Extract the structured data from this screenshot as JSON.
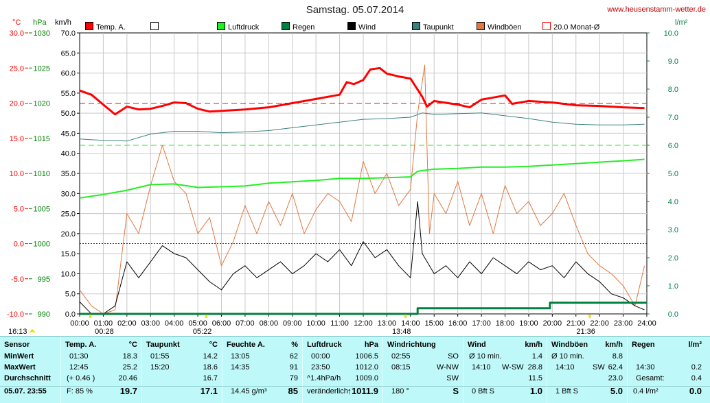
{
  "title": "Samstag. 05.07.2014",
  "site": "www.heusenstamm-wetter.de",
  "units": {
    "temp": "°C",
    "hpa": "hPa",
    "kmh": "km/h",
    "rain": "l/m²"
  },
  "legend": [
    {
      "label": "Temp. A.",
      "color": "#ff0000",
      "style": "filled"
    },
    {
      "label": "",
      "color": "#ffffff",
      "style": "open"
    },
    {
      "label": "Luftdruck",
      "color": "#22ee22",
      "style": "filled"
    },
    {
      "label": "Regen",
      "color": "#008040",
      "style": "filled"
    },
    {
      "label": "Wind",
      "color": "#000000",
      "style": "filled"
    },
    {
      "label": "Taupunkt",
      "color": "#3a8080",
      "style": "filled"
    },
    {
      "label": "Windböen",
      "color": "#e07840",
      "style": "filled"
    },
    {
      "label": "20.0 Monat-Ø",
      "color": "#ff0000",
      "style": "open"
    }
  ],
  "chart_data": {
    "type": "line",
    "title": "Samstag. 05.07.2014",
    "x_unit": "hours",
    "xlim": [
      0,
      24
    ],
    "xticks": [
      "00:00",
      "01:00",
      "02:00",
      "03:00",
      "04:00",
      "05:00",
      "06:00",
      "07:00",
      "08:00",
      "09:00",
      "10:00",
      "11:00",
      "12:00",
      "13:00",
      "14:00",
      "15:00",
      "16:00",
      "17:00",
      "18:00",
      "19:00",
      "20:00",
      "21:00",
      "22:00",
      "23:00",
      "24:00"
    ],
    "y_axes": {
      "kmh": {
        "range": [
          0,
          70
        ],
        "ticks": [
          "0.0",
          "5.0",
          "10.0",
          "15.0",
          "20.0",
          "25.0",
          "30.0",
          "35.0",
          "40.0",
          "45.0",
          "50.0",
          "55.0",
          "60.0",
          "65.0",
          "70.0"
        ]
      },
      "temp": {
        "range": [
          -10,
          30
        ],
        "ticks": [
          "-10.0",
          "-5.0",
          "0.0",
          "5.0",
          "10.0",
          "15.0",
          "20.0",
          "25.0",
          "30.0"
        ]
      },
      "hpa": {
        "range": [
          990,
          1030
        ],
        "ticks": [
          "990",
          "995",
          "1000",
          "1005",
          "1010",
          "1015",
          "1020",
          "1025",
          "1030"
        ]
      },
      "rain": {
        "range": [
          0,
          10
        ],
        "ticks": [
          "0.0",
          "1.0",
          "2.0",
          "3.0",
          "4.0",
          "5.0",
          "6.0",
          "7.0",
          "8.0",
          "9.0",
          "10.0"
        ]
      }
    },
    "reference_lines": [
      {
        "name": "20.0 Monat-Ø",
        "axis": "temp",
        "value": 20.0,
        "color": "#ff0000"
      },
      {
        "axis": "temp",
        "value": 0.0,
        "color": "#0000c0"
      },
      {
        "axis": "rain",
        "value": 6.0,
        "color": "#22ee22"
      }
    ],
    "series": [
      {
        "name": "Temp. A.",
        "axis": "temp",
        "color": "#ff0000",
        "width": 3,
        "points": [
          [
            0,
            21.8
          ],
          [
            0.5,
            21.2
          ],
          [
            1,
            19.8
          ],
          [
            1.5,
            18.4
          ],
          [
            2,
            19.5
          ],
          [
            2.5,
            19.1
          ],
          [
            3,
            19.2
          ],
          [
            3.5,
            19.6
          ],
          [
            4,
            20.1
          ],
          [
            4.5,
            20.0
          ],
          [
            5,
            19.2
          ],
          [
            5.5,
            18.8
          ],
          [
            6,
            18.9
          ],
          [
            7,
            19.1
          ],
          [
            8,
            19.4
          ],
          [
            9,
            20.0
          ],
          [
            10,
            20.6
          ],
          [
            11,
            21.2
          ],
          [
            11.3,
            23.0
          ],
          [
            11.6,
            22.7
          ],
          [
            12,
            23.3
          ],
          [
            12.3,
            24.8
          ],
          [
            12.7,
            25.0
          ],
          [
            13,
            24.2
          ],
          [
            13.5,
            23.8
          ],
          [
            14,
            23.5
          ],
          [
            14.5,
            20.9
          ],
          [
            14.7,
            19.5
          ],
          [
            15,
            20.3
          ],
          [
            16,
            19.8
          ],
          [
            16.5,
            19.4
          ],
          [
            17,
            20.5
          ],
          [
            17.5,
            20.8
          ],
          [
            18,
            21.1
          ],
          [
            18.3,
            19.9
          ],
          [
            19,
            20.3
          ],
          [
            20,
            20.1
          ],
          [
            21,
            19.7
          ],
          [
            22,
            19.6
          ],
          [
            23,
            19.4
          ],
          [
            23.9,
            19.3
          ]
        ]
      },
      {
        "name": "Luftdruck",
        "axis": "hpa",
        "color": "#22ee22",
        "width": 2,
        "points": [
          [
            0,
            1006.5
          ],
          [
            1,
            1007.0
          ],
          [
            2,
            1007.6
          ],
          [
            3,
            1008.4
          ],
          [
            4,
            1008.5
          ],
          [
            5,
            1008.0
          ],
          [
            6,
            1008.1
          ],
          [
            7,
            1008.2
          ],
          [
            8,
            1008.6
          ],
          [
            9,
            1008.8
          ],
          [
            10,
            1009.0
          ],
          [
            11,
            1009.3
          ],
          [
            12,
            1009.3
          ],
          [
            13,
            1009.4
          ],
          [
            14,
            1009.5
          ],
          [
            14.3,
            1010.3
          ],
          [
            15,
            1010.6
          ],
          [
            16,
            1010.7
          ],
          [
            17,
            1010.9
          ],
          [
            18,
            1010.9
          ],
          [
            19,
            1011.0
          ],
          [
            20,
            1011.2
          ],
          [
            21,
            1011.4
          ],
          [
            22,
            1011.6
          ],
          [
            23,
            1011.8
          ],
          [
            23.9,
            1012.0
          ]
        ]
      },
      {
        "name": "Taupunkt",
        "axis": "temp",
        "color": "#3a8080",
        "width": 1,
        "points": [
          [
            0,
            14.9
          ],
          [
            1,
            14.7
          ],
          [
            2,
            14.6
          ],
          [
            3,
            15.6
          ],
          [
            4,
            16.0
          ],
          [
            5,
            16.0
          ],
          [
            6,
            15.8
          ],
          [
            7,
            15.9
          ],
          [
            8,
            16.1
          ],
          [
            9,
            16.5
          ],
          [
            10,
            16.9
          ],
          [
            11,
            17.3
          ],
          [
            12,
            17.7
          ],
          [
            13,
            17.8
          ],
          [
            14,
            18.0
          ],
          [
            14.5,
            18.6
          ],
          [
            15,
            18.4
          ],
          [
            16,
            18.5
          ],
          [
            17,
            18.6
          ],
          [
            18,
            18.2
          ],
          [
            19,
            17.8
          ],
          [
            20,
            17.3
          ],
          [
            21,
            17.0
          ],
          [
            22,
            16.9
          ],
          [
            23,
            16.9
          ],
          [
            23.9,
            17.0
          ]
        ]
      },
      {
        "name": "Wind",
        "axis": "kmh",
        "color": "#000000",
        "width": 1,
        "points": [
          [
            0,
            3
          ],
          [
            0.5,
            0
          ],
          [
            1,
            0
          ],
          [
            1.5,
            2
          ],
          [
            2,
            13
          ],
          [
            2.5,
            9
          ],
          [
            3,
            13
          ],
          [
            3.5,
            17
          ],
          [
            4,
            15
          ],
          [
            4.5,
            14
          ],
          [
            5,
            11
          ],
          [
            5.5,
            8
          ],
          [
            6,
            6
          ],
          [
            6.5,
            10
          ],
          [
            7,
            12
          ],
          [
            7.5,
            9
          ],
          [
            8,
            11
          ],
          [
            8.5,
            13
          ],
          [
            9,
            10
          ],
          [
            9.5,
            12
          ],
          [
            10,
            15
          ],
          [
            10.5,
            13
          ],
          [
            11,
            16
          ],
          [
            11.5,
            12
          ],
          [
            12,
            18
          ],
          [
            12.5,
            14
          ],
          [
            13,
            16
          ],
          [
            13.5,
            12
          ],
          [
            14,
            9
          ],
          [
            14.3,
            28
          ],
          [
            14.5,
            15
          ],
          [
            15,
            10
          ],
          [
            15.5,
            12
          ],
          [
            16,
            9
          ],
          [
            16.5,
            13
          ],
          [
            17,
            10
          ],
          [
            17.5,
            14
          ],
          [
            18,
            12
          ],
          [
            18.5,
            10
          ],
          [
            19,
            13
          ],
          [
            19.5,
            11
          ],
          [
            20,
            12
          ],
          [
            20.5,
            9
          ],
          [
            21,
            13
          ],
          [
            21.5,
            10
          ],
          [
            22,
            8
          ],
          [
            22.5,
            5
          ],
          [
            23,
            4
          ],
          [
            23.5,
            2
          ],
          [
            23.9,
            1
          ]
        ]
      },
      {
        "name": "Windböen",
        "axis": "kmh",
        "color": "#e07840",
        "width": 1,
        "points": [
          [
            0,
            6
          ],
          [
            0.5,
            2
          ],
          [
            1,
            0
          ],
          [
            1.5,
            1
          ],
          [
            2,
            25
          ],
          [
            2.5,
            20
          ],
          [
            3,
            32
          ],
          [
            3.5,
            42
          ],
          [
            4,
            33
          ],
          [
            4.5,
            30
          ],
          [
            5,
            20
          ],
          [
            5.5,
            24
          ],
          [
            6,
            12
          ],
          [
            6.5,
            18
          ],
          [
            7,
            27
          ],
          [
            7.5,
            20
          ],
          [
            8,
            28
          ],
          [
            8.5,
            22
          ],
          [
            9,
            30
          ],
          [
            9.5,
            20
          ],
          [
            10,
            26
          ],
          [
            10.5,
            30
          ],
          [
            11,
            28
          ],
          [
            11.5,
            23
          ],
          [
            12,
            38
          ],
          [
            12.5,
            30
          ],
          [
            13,
            35
          ],
          [
            13.5,
            27
          ],
          [
            14,
            31
          ],
          [
            14.3,
            50
          ],
          [
            14.6,
            62
          ],
          [
            14.8,
            20
          ],
          [
            15,
            30
          ],
          [
            15.5,
            25
          ],
          [
            16,
            33
          ],
          [
            16.5,
            22
          ],
          [
            17,
            30
          ],
          [
            17.5,
            20
          ],
          [
            18,
            32
          ],
          [
            18.5,
            25
          ],
          [
            19,
            28
          ],
          [
            19.5,
            22
          ],
          [
            20,
            25
          ],
          [
            20.5,
            30
          ],
          [
            21,
            22
          ],
          [
            21.5,
            15
          ],
          [
            22,
            12
          ],
          [
            22.5,
            10
          ],
          [
            23,
            7
          ],
          [
            23.5,
            2
          ],
          [
            23.9,
            12
          ]
        ]
      },
      {
        "name": "Regen",
        "axis": "rain",
        "color": "#008040",
        "width": 3,
        "points": [
          [
            0,
            0
          ],
          [
            14.3,
            0
          ],
          [
            14.3,
            0.2
          ],
          [
            19.9,
            0.2
          ],
          [
            19.9,
            0.4
          ],
          [
            24,
            0.4
          ]
        ]
      }
    ],
    "markers": [
      {
        "label": "16:13",
        "axis_side": "left"
      },
      {
        "label": "00:28",
        "hour": 0.47
      },
      {
        "label": "05:22",
        "hour": 5.37
      },
      {
        "label": "13:48",
        "hour": 13.8
      },
      {
        "label": "21:36",
        "hour": 21.6
      }
    ]
  },
  "table": {
    "labels": {
      "title": "Sensor",
      "min": "MinWert",
      "max": "MaxWert",
      "avg": "Durchschnitt",
      "date": "05.07. 23:55"
    },
    "temp": {
      "title": "Temp. A.",
      "unit": "°C",
      "min_t": "01:30",
      "min_v": "18.3",
      "max_t": "12:45",
      "max_v": "25.2",
      "avg_note": "(+ 0.46 )",
      "avg_v": "20.46",
      "cur_note": "F: 85 %",
      "cur_v": "19.7"
    },
    "dew": {
      "title": "Taupunkt",
      "unit": "°C",
      "min_t": "01:55",
      "min_v": "14.2",
      "max_t": "15:20",
      "max_v": "18.6",
      "avg_v": "16.7",
      "cur_v": "17.1"
    },
    "hum": {
      "title": "Feuchte A.",
      "unit": "%",
      "min_t": "13:05",
      "min_v": "62",
      "max_t": "14:35",
      "max_v": "91",
      "avg_v": "79",
      "cur_note": "14.45 g/m³",
      "cur_v": "85"
    },
    "press": {
      "title": "Luftdruck",
      "unit": "hPa",
      "min_t": "00:00",
      "min_v": "1006.5",
      "max_t": "23:50",
      "max_v": "1012.0",
      "avg_note": "^1.4hPa/h",
      "avg_v": "1009.0",
      "cur_note": "veränderlich",
      "cur_v": "1011.9"
    },
    "dir": {
      "title": "Windrichtung",
      "min_t": "02:55",
      "min_v": "SO",
      "max_t": "08:15",
      "max_v": "W-NW",
      "avg_v": "SW",
      "cur_note": "180 °",
      "cur_v": "S"
    },
    "wind": {
      "title": "Wind",
      "unit": "km/h",
      "min_t": "Ø 10 min.",
      "min_v": "1.4",
      "max_t": "14:10",
      "max_dir": "W-SW",
      "max_v": "28.8",
      "avg_v": "11.5",
      "cur_note": "0 Bft S",
      "cur_v": "1.0"
    },
    "gust": {
      "title": "Windböen",
      "unit": "km/h",
      "min_t": "Ø 10 min.",
      "min_v": "8.8",
      "max_t": "14:10",
      "max_dir": "SW",
      "max_v": "62.4",
      "avg_v": "23.0",
      "cur_note": "1 Bft S",
      "cur_v": "5.0"
    },
    "rain": {
      "title": "Regen",
      "unit": "l/m²",
      "max_t": "14:30",
      "max_v": "0.2",
      "avg_note": "Gesamt:",
      "avg_v": "0.4",
      "cur_note": "0.4 l/m²",
      "cur_v": "0.0"
    }
  }
}
